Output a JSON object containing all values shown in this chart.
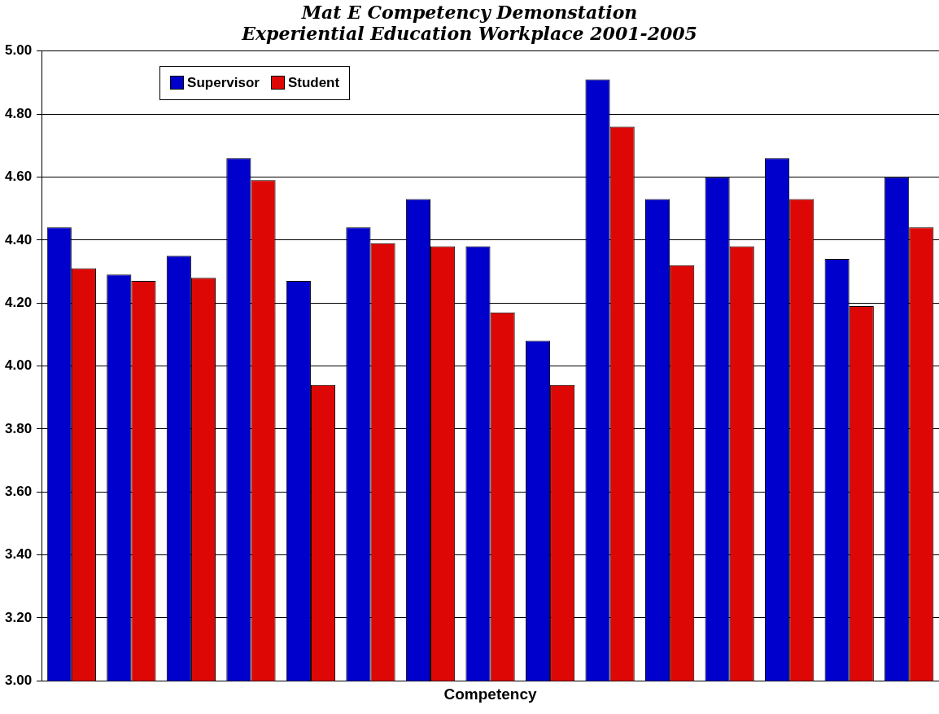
{
  "chart_data": {
    "type": "bar",
    "title": "Mat E Competency Demonstation",
    "subtitle": "Experiential Education Workplace 2001-2005",
    "xlabel": "Competency",
    "categories": [
      null,
      null,
      null,
      null,
      null,
      null,
      null,
      null,
      null,
      null,
      null,
      null,
      null,
      null,
      null
    ],
    "series": [
      {
        "name": "Supervisor",
        "color": "#0000cc",
        "values": [
          4.44,
          4.29,
          4.35,
          4.66,
          4.27,
          4.44,
          4.53,
          4.38,
          4.08,
          4.91,
          4.53,
          4.6,
          4.66,
          4.34,
          4.6
        ]
      },
      {
        "name": "Student",
        "color": "#dd0806",
        "values": [
          4.31,
          4.27,
          4.28,
          4.59,
          3.94,
          4.39,
          4.38,
          4.17,
          3.94,
          4.76,
          4.32,
          4.38,
          4.53,
          4.19,
          4.44
        ]
      }
    ],
    "ylim": [
      3.0,
      5.0
    ],
    "yticks": [
      {
        "value": 3.0,
        "label": "3.00"
      },
      {
        "value": 3.2,
        "label": "3.20"
      },
      {
        "value": 3.4,
        "label": "3.40"
      },
      {
        "value": 3.6,
        "label": "3.60"
      },
      {
        "value": 3.8,
        "label": "3.80"
      },
      {
        "value": 4.0,
        "label": "4.00"
      },
      {
        "value": 4.2,
        "label": "4.20"
      },
      {
        "value": 4.4,
        "label": "4.40"
      },
      {
        "value": 4.6,
        "label": "4.60"
      },
      {
        "value": 4.8,
        "label": "4.80"
      },
      {
        "value": 5.0,
        "label": "5.00"
      }
    ],
    "grid": "y",
    "legend": "top left"
  }
}
